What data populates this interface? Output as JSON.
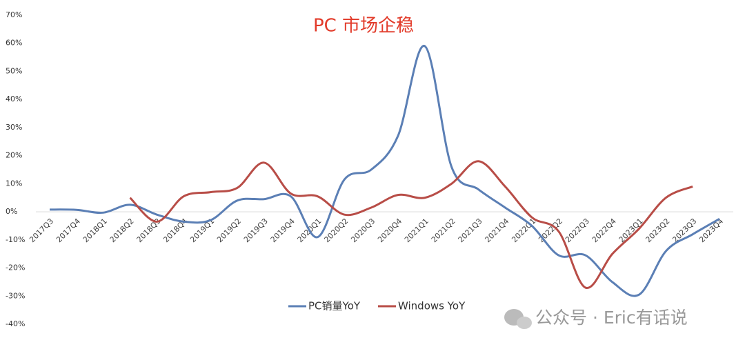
{
  "chart_data": {
    "type": "line",
    "title": "PC 市场企稳",
    "title_color": "#e23b2a",
    "categories": [
      "2017Q3",
      "2017Q4",
      "2018Q1",
      "2018Q2",
      "2018Q3",
      "2018Q4",
      "2019Q1",
      "2019Q2",
      "2019Q3",
      "2019Q4",
      "2020Q1",
      "2020Q2",
      "2020Q3",
      "2020Q4",
      "2021Q1",
      "2021Q2",
      "2021Q3",
      "2021Q4",
      "2022Q1",
      "2022Q2",
      "2022Q3",
      "2022Q4",
      "2023Q1",
      "2023Q2",
      "2023Q3",
      "2023Q4"
    ],
    "series": [
      {
        "name": "PC销量YoY",
        "color": "#5b7fb5",
        "values": [
          0.8,
          0.7,
          -0.3,
          2.5,
          -1,
          -3.5,
          -3,
          4,
          4.5,
          5.5,
          -9,
          11.5,
          15,
          27,
          59,
          16,
          8,
          1.5,
          -5,
          -15.5,
          -15.5,
          -25,
          -29.5,
          -14,
          -8,
          -2.5
        ]
      },
      {
        "name": "Windows YoY",
        "color": "#b84d47",
        "values": [
          null,
          null,
          null,
          5,
          -3.5,
          5.5,
          7,
          8.5,
          17.5,
          6.5,
          5.5,
          -1,
          1.5,
          6,
          5,
          10,
          18,
          9,
          -2,
          -7,
          -27,
          -15,
          -6,
          5,
          9,
          null
        ]
      }
    ],
    "ylim": [
      -40,
      70
    ],
    "yticks": [
      {
        "value": -40,
        "label": "-40%"
      },
      {
        "value": -30,
        "label": "-30%"
      },
      {
        "value": -20,
        "label": "-20%"
      },
      {
        "value": -10,
        "label": "-10%"
      },
      {
        "value": 0,
        "label": "0%"
      },
      {
        "value": 10,
        "label": "10%"
      },
      {
        "value": 20,
        "label": "20%"
      },
      {
        "value": 30,
        "label": "30%"
      },
      {
        "value": 40,
        "label": "40%"
      },
      {
        "value": 50,
        "label": "50%"
      },
      {
        "value": 60,
        "label": "60%"
      },
      {
        "value": 70,
        "label": "70%"
      }
    ],
    "grid": false,
    "legend": "bottom",
    "smooth": true,
    "watermark": "公众号 · Eric有话说"
  }
}
